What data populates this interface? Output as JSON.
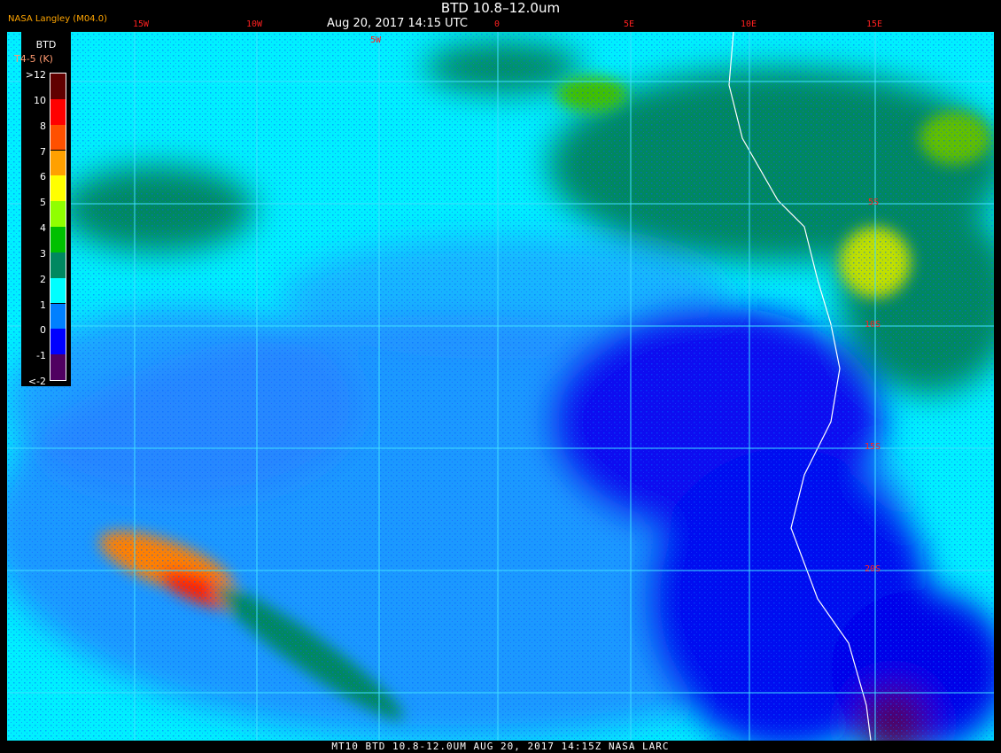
{
  "header": {
    "title": "BTD 10.8–12.0um",
    "subtitle": "Aug 20, 2017 14:15 UTC",
    "credit": "NASA Langley (M04.0)"
  },
  "longitude_labels": [
    "15W",
    "10W",
    "5W",
    "0",
    "5E",
    "10E",
    "15E"
  ],
  "latitude_labels": [
    "5S",
    "10S",
    "15S",
    "20S"
  ],
  "legend": {
    "title": "BTD",
    "unit": "T4-5 (K)",
    "labels": [
      ">12",
      "10",
      "8",
      "7",
      "6",
      "5",
      "4",
      "3",
      "2",
      "1",
      "0",
      "-1",
      "<-2"
    ],
    "colors": [
      "#600000",
      "#ff0000",
      "#ff5000",
      "#ffa000",
      "#ffff00",
      "#90ff00",
      "#00c000",
      "#008860",
      "#00ffff",
      "#0080ff",
      "#0000ff",
      "#500060"
    ]
  },
  "footer": "MT10   BTD 10.8-12.0UM   AUG 20, 2017 14:15Z   NASA LARC"
}
